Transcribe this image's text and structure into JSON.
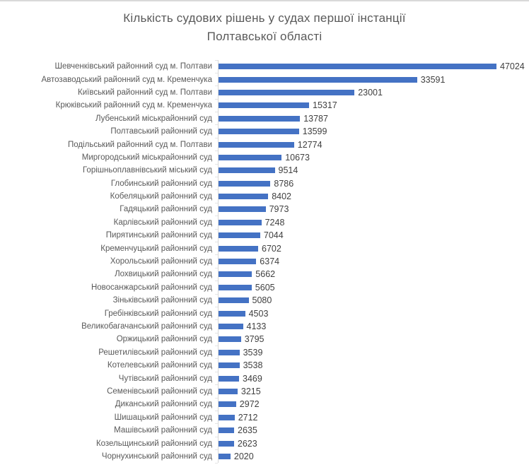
{
  "title": {
    "line1": "Кількість судових рішень у судах першої інстанції",
    "line2": "Полтавської області"
  },
  "colors": {
    "bar": "#4472C4",
    "axis": "#d9d9d9",
    "title_text": "#595959",
    "category_text": "#595959",
    "value_text": "#404040"
  },
  "chart_data": {
    "type": "bar",
    "orientation": "horizontal",
    "title": "Кількість судових рішень у судах першої інстанції Полтавської області",
    "xlabel": "",
    "ylabel": "",
    "xlim": [
      0,
      47024
    ],
    "grid": false,
    "legend": "none",
    "data_labels": true,
    "categories": [
      "Шевченківський районний суд м. Полтави",
      "Автозаводський районний суд м. Кременчука",
      "Київський районний суд м. Полтави",
      "Крюківський районний суд м. Кременчука",
      "Лубенський міськрайонний суд",
      "Полтавський районний суд",
      "Подільський районний суд м. Полтави",
      "Миргородський міськрайонний суд",
      "Горішньоплавнівський міський суд",
      "Глобинський районний суд",
      "Кобеляцький районний суд",
      "Гадяцький районний суд",
      "Карлівський районний суд",
      "Пирятинський районний суд",
      "Кременчуцький районний суд",
      "Хорольський районний суд",
      "Лохвицький районний суд",
      "Новосанжарський районний суд",
      "Зіньківський районний суд",
      "Гребінківський районний суд",
      "Великобагачанський районний суд",
      "Оржицький районний суд",
      "Решетилівський районний суд",
      "Котелевський районний суд",
      "Чутівський районний суд",
      "Семенівський районний суд",
      "Диканський районний суд",
      "Шишацький районний суд",
      "Машівський районний суд",
      "Козельщинський районний суд",
      "Чорнухинський районний суд"
    ],
    "values": [
      47024,
      33591,
      23001,
      15317,
      13787,
      13599,
      12774,
      10673,
      9514,
      8786,
      8402,
      7973,
      7248,
      7044,
      6702,
      6374,
      5662,
      5605,
      5080,
      4503,
      4133,
      3795,
      3539,
      3538,
      3469,
      3215,
      2972,
      2712,
      2635,
      2623,
      2020
    ]
  }
}
